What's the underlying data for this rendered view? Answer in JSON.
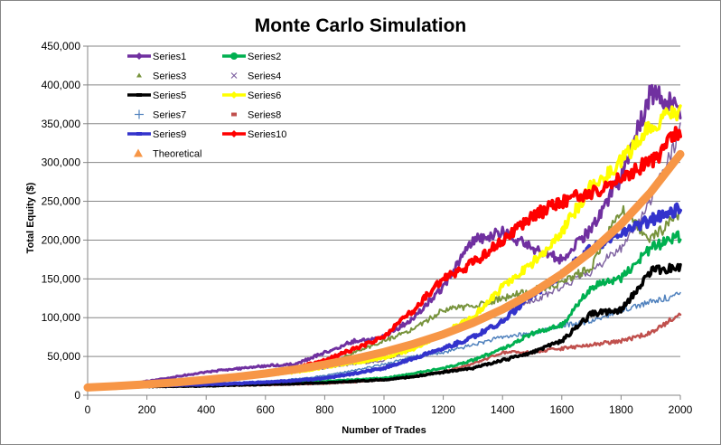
{
  "chart_data": {
    "type": "line",
    "title": "Monte Carlo Simulation",
    "xlabel": "Number of Trades",
    "ylabel": "Total Equity ($)",
    "xlim": [
      0,
      2000
    ],
    "ylim": [
      0,
      450000
    ],
    "x_ticks": [
      0,
      200,
      400,
      600,
      800,
      1000,
      1200,
      1400,
      1600,
      1800,
      2000
    ],
    "x_tick_labels": [
      "0",
      "200",
      "400",
      "600",
      "800",
      "1000",
      "1200",
      "1400",
      "1600",
      "1800",
      "2000"
    ],
    "y_ticks": [
      0,
      50000,
      100000,
      150000,
      200000,
      250000,
      300000,
      350000,
      400000,
      450000
    ],
    "y_tick_labels": [
      "0",
      "50,000",
      "100,000",
      "150,000",
      "200,000",
      "250,000",
      "300,000",
      "350,000",
      "400,000",
      "450,000"
    ],
    "grid": "horizontal",
    "legend_position": "top-left",
    "x": [
      0,
      100,
      200,
      300,
      400,
      500,
      600,
      700,
      800,
      900,
      1000,
      1100,
      1200,
      1300,
      1400,
      1500,
      1600,
      1700,
      1800,
      1900,
      2000
    ],
    "series": [
      {
        "name": "Series1",
        "color": "#7030A0",
        "marker": "diamond",
        "values": [
          10000,
          13000,
          18000,
          24000,
          30000,
          34000,
          38000,
          40000,
          55000,
          70000,
          75000,
          100000,
          140000,
          200000,
          210000,
          190000,
          175000,
          215000,
          280000,
          390000,
          370000
        ]
      },
      {
        "name": "Series2",
        "color": "#00B050",
        "marker": "circle",
        "values": [
          10000,
          11000,
          12000,
          13000,
          14000,
          15000,
          16000,
          17000,
          18000,
          20000,
          22000,
          28000,
          35000,
          45000,
          60000,
          80000,
          90000,
          140000,
          150000,
          190000,
          205000
        ]
      },
      {
        "name": "Series3",
        "color": "#77933C",
        "marker": "triangle",
        "values": [
          10000,
          12000,
          14000,
          17000,
          20000,
          23000,
          26000,
          30000,
          38000,
          55000,
          70000,
          85000,
          110000,
          115000,
          125000,
          135000,
          145000,
          165000,
          240000,
          200000,
          235000
        ]
      },
      {
        "name": "Series4",
        "color": "#8064A2",
        "marker": "x",
        "values": [
          10000,
          12000,
          14000,
          16000,
          19000,
          22000,
          26000,
          30000,
          35000,
          40000,
          45000,
          60000,
          80000,
          95000,
          110000,
          120000,
          140000,
          160000,
          190000,
          250000,
          340000
        ]
      },
      {
        "name": "Series5",
        "color": "#000000",
        "marker": "dash",
        "values": [
          10000,
          10500,
          11000,
          11500,
          12000,
          13000,
          14000,
          15000,
          16000,
          18000,
          20000,
          24000,
          30000,
          35000,
          45000,
          55000,
          70000,
          105000,
          110000,
          160000,
          165000
        ]
      },
      {
        "name": "Series6",
        "color": "#FFFF00",
        "marker": "diamond",
        "values": [
          10000,
          12000,
          14000,
          16000,
          19000,
          22000,
          26000,
          30000,
          36000,
          42000,
          48000,
          60000,
          80000,
          100000,
          140000,
          170000,
          210000,
          270000,
          300000,
          350000,
          370000
        ]
      },
      {
        "name": "Series7",
        "color": "#4F81BD",
        "marker": "plus",
        "values": [
          10000,
          14000,
          13000,
          14000,
          15000,
          16000,
          18000,
          21000,
          25000,
          32000,
          40000,
          50000,
          55000,
          65000,
          75000,
          80000,
          90000,
          95000,
          110000,
          120000,
          130000
        ]
      },
      {
        "name": "Series8",
        "color": "#C0504D",
        "marker": "dash",
        "values": [
          10000,
          10500,
          11000,
          11500,
          12000,
          12500,
          13000,
          14000,
          15000,
          17000,
          20000,
          25000,
          30000,
          40000,
          55000,
          55000,
          60000,
          65000,
          70000,
          80000,
          105000
        ]
      },
      {
        "name": "Series9",
        "color": "#3333CC",
        "marker": "dash",
        "values": [
          10000,
          11000,
          12000,
          13000,
          14000,
          15000,
          17000,
          19000,
          22000,
          28000,
          35000,
          48000,
          60000,
          75000,
          95000,
          130000,
          155000,
          190000,
          210000,
          225000,
          240000
        ]
      },
      {
        "name": "Series10",
        "color": "#FF0000",
        "marker": "diamond",
        "values": [
          10000,
          12000,
          14000,
          17000,
          20000,
          24000,
          28000,
          35000,
          45000,
          60000,
          75000,
          110000,
          150000,
          170000,
          200000,
          230000,
          250000,
          260000,
          280000,
          300000,
          340000
        ]
      },
      {
        "name": "Theoretical",
        "color": "#F79646",
        "marker": "triangle",
        "values": [
          10000,
          11900,
          14100,
          16700,
          19900,
          23600,
          28000,
          33300,
          39500,
          46900,
          55700,
          66200,
          78600,
          93300,
          110800,
          131600,
          156300,
          185600,
          220400,
          261700,
          310800
        ]
      }
    ]
  }
}
